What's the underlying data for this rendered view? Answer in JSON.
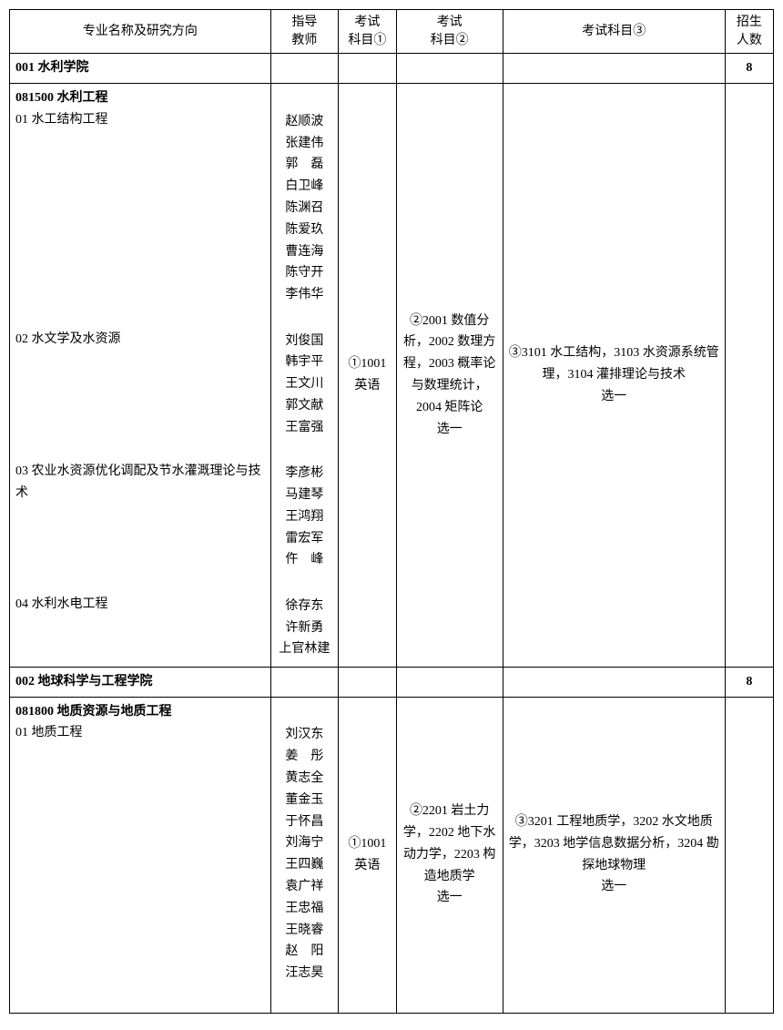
{
  "headers": {
    "major": "专业名称及研究方向",
    "teacher": "指导\n教师",
    "subject1": "考试\n科目①",
    "subject2": "考试\n科目②",
    "subject3": "考试科目③",
    "count": "招生\n人数"
  },
  "rows": {
    "dept1": {
      "title": "001 水利学院",
      "count": "8"
    },
    "major1": {
      "title": "081500 水利工程",
      "dir1": "01 水工结构工程",
      "dir2": "02 水文学及水资源",
      "dir3": "03 农业水资源优化调配及节水灌溉理论与技术",
      "dir4": "04 水利水电工程",
      "teachers1": [
        "赵顺波",
        "张建伟",
        "郭　磊",
        "白卫峰",
        "陈渊召",
        "陈爱玖",
        "曹连海",
        "陈守开",
        "李伟华"
      ],
      "teachers2": [
        "刘俊国",
        "韩宇平",
        "王文川",
        "郭文献",
        "王富强"
      ],
      "teachers3": [
        "李彦彬",
        "马建琴",
        "王鸿翔",
        "雷宏军",
        "仵　峰"
      ],
      "teachers4": [
        "徐存东",
        "许新勇",
        "上官林建"
      ],
      "subject1": "①1001英语",
      "subject2": "②2001 数值分析，2002 数理方程，2003 概率论与数理统计，2004 矩阵论",
      "subject2_suffix": "选一",
      "subject3": "③3101 水工结构，3103 水资源系统管理，3104 灌排理论与技术",
      "subject3_suffix": "选一"
    },
    "dept2": {
      "title": "002 地球科学与工程学院",
      "count": "8"
    },
    "major2": {
      "title": "081800 地质资源与地质工程",
      "dir1": "01 地质工程",
      "teachers1": [
        "刘汉东",
        "姜　彤",
        "黄志全",
        "董金玉",
        "于怀昌",
        "刘海宁",
        "王四巍",
        "袁广祥",
        "王忠福",
        "王晓睿",
        "赵　阳",
        "汪志昊"
      ],
      "subject1": "①1001英语",
      "subject2": "②2201 岩土力学，2202 地下水动力学，2203 构造地质学",
      "subject2_suffix": "选一",
      "subject3": "③3201 工程地质学，3202 水文地质学，3203 地学信息数据分析，3204 勘探地球物理",
      "subject3_suffix": "选一"
    }
  }
}
